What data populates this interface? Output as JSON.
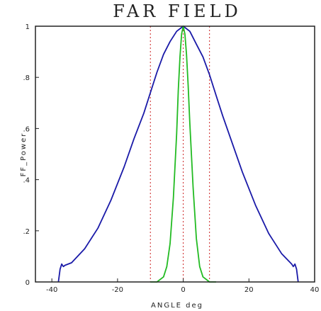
{
  "chart_data": {
    "type": "line",
    "title": "FAR FIELD",
    "xlabel": "ANGLE deg",
    "ylabel": "FF_Power",
    "xlim": [
      -45,
      40
    ],
    "ylim": [
      0,
      1
    ],
    "x_ticks": [
      -40,
      -20,
      0,
      20,
      40
    ],
    "x_tick_labels": [
      "-40",
      "-20",
      "0",
      "20",
      "40"
    ],
    "y_ticks": [
      0,
      0.2,
      0.4,
      0.6,
      0.8,
      1
    ],
    "y_tick_labels": [
      "0",
      ".2",
      ".4",
      ".6",
      ".8",
      "1"
    ],
    "series": [
      {
        "color": "#1a1aa8",
        "x": [
          -38,
          -37.5,
          -37,
          -36.5,
          -36,
          -34,
          -30,
          -26,
          -22,
          -18,
          -15,
          -12,
          -10,
          -8,
          -6,
          -4,
          -2,
          0,
          2,
          4,
          6,
          8,
          10,
          12,
          15,
          18,
          22,
          26,
          30,
          33,
          33.5,
          34,
          34.5,
          35
        ],
        "y": [
          0.0,
          0.05,
          0.07,
          0.06,
          0.065,
          0.075,
          0.13,
          0.21,
          0.32,
          0.45,
          0.56,
          0.66,
          0.74,
          0.82,
          0.89,
          0.94,
          0.98,
          1.0,
          0.98,
          0.93,
          0.88,
          0.81,
          0.73,
          0.65,
          0.54,
          0.43,
          0.3,
          0.19,
          0.11,
          0.07,
          0.06,
          0.07,
          0.05,
          0.0
        ]
      },
      {
        "color": "#22bb22",
        "x": [
          -10,
          -8,
          -6,
          -5,
          -4,
          -3,
          -2,
          -1.5,
          -1,
          -0.5,
          0,
          0.5,
          1,
          1.5,
          2,
          3,
          4,
          5,
          6,
          8,
          10
        ],
        "y": [
          0.0,
          0.0,
          0.02,
          0.06,
          0.15,
          0.33,
          0.58,
          0.75,
          0.88,
          0.97,
          1.0,
          0.97,
          0.89,
          0.77,
          0.62,
          0.37,
          0.17,
          0.06,
          0.02,
          0.0,
          0.0
        ]
      }
    ],
    "reference_lines": [
      {
        "x": -10,
        "color": "#cc2222"
      },
      {
        "x": 0,
        "color": "#cc2222"
      },
      {
        "x": 8,
        "color": "#cc2222"
      }
    ],
    "grid": false
  }
}
